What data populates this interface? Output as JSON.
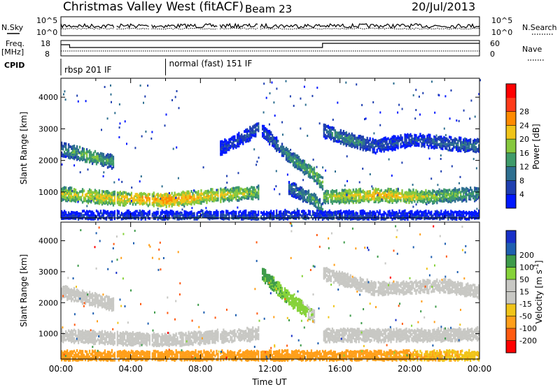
{
  "header": {
    "station": "Christmas Valley West (fitACF)",
    "beam": "Beam 23",
    "date": "20/Jul/2013"
  },
  "top_panels": {
    "nsky_label": "N.Sky",
    "nsky_ticks": [
      "10^5",
      "10^0"
    ],
    "nsearch_label": "N.Search",
    "nsearch_ticks": [
      "10^5",
      "10^0"
    ],
    "freq_label_1": "Freq.",
    "freq_label_2": "[MHz]",
    "freq_ticks": [
      "18",
      "8"
    ],
    "nave_label": "Nave",
    "nave_ticks": [
      "60",
      "0"
    ],
    "cpid_label": "CPID",
    "cpid_segments": [
      {
        "start_h": 0.0,
        "end_h": 6.0,
        "label": "rbsp 201 IF"
      },
      {
        "start_h": 6.0,
        "end_h": 24.0,
        "label": "normal (fast) 151 IF"
      }
    ]
  },
  "colors": {
    "power": [
      "#0018ff",
      "#1f3fb0",
      "#2e6f90",
      "#3f9b6a",
      "#86c83e",
      "#f0c419",
      "#ff8a00",
      "#ff3b1a",
      "#ff0000"
    ],
    "velocity": [
      "#ff0000",
      "#ff5a10",
      "#ff9f1a",
      "#f0c419",
      "#c8c8c4",
      "#c8c8c4",
      "#86d23a",
      "#3e9b4a",
      "#1f5fb0",
      "#1830c8"
    ]
  },
  "chart_data": [
    {
      "type": "heatmap",
      "name": "power",
      "xlabel": "Time UT",
      "ylabel": "Slant Range [km]",
      "xlim": [
        0,
        24
      ],
      "ylim": [
        180,
        4600
      ],
      "x_tick_labels": [
        "00:00",
        "04:00",
        "08:00",
        "12:00",
        "16:00",
        "20:00",
        "00:00"
      ],
      "y_ticks": [
        1000,
        2000,
        3000,
        4000
      ],
      "colorbar_label": "Power [dB]",
      "colorbar_ticks": [
        4,
        8,
        12,
        16,
        20,
        24,
        28
      ],
      "bands": [
        {
          "x": [
            0.0,
            1.5,
            3.0
          ],
          "y": [
            2400,
            2200,
            2000
          ],
          "level": [
            12,
            18,
            14
          ]
        },
        {
          "x": [
            0.0,
            3.0,
            6.0,
            9.0,
            11.3
          ],
          "y": [
            1000,
            850,
            800,
            950,
            1050
          ],
          "level": [
            20,
            22,
            26,
            22,
            18
          ]
        },
        {
          "x": [
            9.0,
            10.5,
            11.3
          ],
          "y": [
            2400,
            2800,
            3100
          ],
          "level": [
            6,
            8,
            10
          ]
        },
        {
          "x": [
            11.5,
            13.0,
            14.5,
            15.0
          ],
          "y": [
            3000,
            2200,
            1600,
            1300
          ],
          "level": [
            8,
            14,
            18,
            16
          ]
        },
        {
          "x": [
            13.0,
            14.5,
            15.0
          ],
          "y": [
            1200,
            800,
            500
          ],
          "level": [
            10,
            16,
            14
          ]
        },
        {
          "x": [
            15.0,
            18.0,
            21.0,
            24.0
          ],
          "y": [
            900,
            950,
            900,
            1000
          ],
          "level": [
            18,
            24,
            20,
            14
          ]
        },
        {
          "x": [
            15.0,
            16.5,
            18.0,
            20.0,
            22.0,
            24.0
          ],
          "y": [
            3000,
            2700,
            2500,
            2700,
            2600,
            2500
          ],
          "level": [
            10,
            14,
            8,
            8,
            10,
            12
          ]
        },
        {
          "x": [
            0.0,
            12.0,
            24.0
          ],
          "y": [
            250,
            250,
            250
          ],
          "level": [
            6,
            8,
            6
          ]
        }
      ]
    },
    {
      "type": "heatmap",
      "name": "velocity",
      "xlabel": "Time UT",
      "ylabel": "Slant Range [km]",
      "xlim": [
        0,
        24
      ],
      "ylim": [
        180,
        4600
      ],
      "x_tick_labels": [
        "00:00",
        "04:00",
        "08:00",
        "12:00",
        "16:00",
        "20:00",
        "00:00"
      ],
      "y_ticks": [
        1000,
        2000,
        3000,
        4000
      ],
      "colorbar_label": "Velocity [m s^-1]",
      "colorbar_ticks": [
        -200,
        -100,
        -50,
        -15,
        15,
        50,
        100,
        200
      ],
      "bands": [
        {
          "x": [
            0.0,
            1.5,
            3.0
          ],
          "y": [
            2400,
            2200,
            2000
          ],
          "level": [
            0,
            0,
            0
          ]
        },
        {
          "x": [
            0.0,
            3.0,
            6.0,
            9.0,
            11.3
          ],
          "y": [
            1000,
            900,
            850,
            950,
            1050
          ],
          "level": [
            0,
            0,
            0,
            0,
            0
          ]
        },
        {
          "x": [
            11.5,
            13.0,
            14.5
          ],
          "y": [
            3000,
            2200,
            1600
          ],
          "level": [
            60,
            40,
            10
          ]
        },
        {
          "x": [
            15.0,
            18.0,
            21.0,
            24.0
          ],
          "y": [
            1000,
            1000,
            1000,
            1050
          ],
          "level": [
            0,
            0,
            0,
            0
          ]
        },
        {
          "x": [
            15.0,
            18.0,
            22.0,
            24.0
          ],
          "y": [
            3000,
            2500,
            2600,
            2400
          ],
          "level": [
            0,
            0,
            0,
            0
          ]
        },
        {
          "x": [
            0.0,
            12.0,
            24.0
          ],
          "y": [
            300,
            300,
            300
          ],
          "level": [
            -60,
            -80,
            -40
          ]
        }
      ]
    }
  ]
}
